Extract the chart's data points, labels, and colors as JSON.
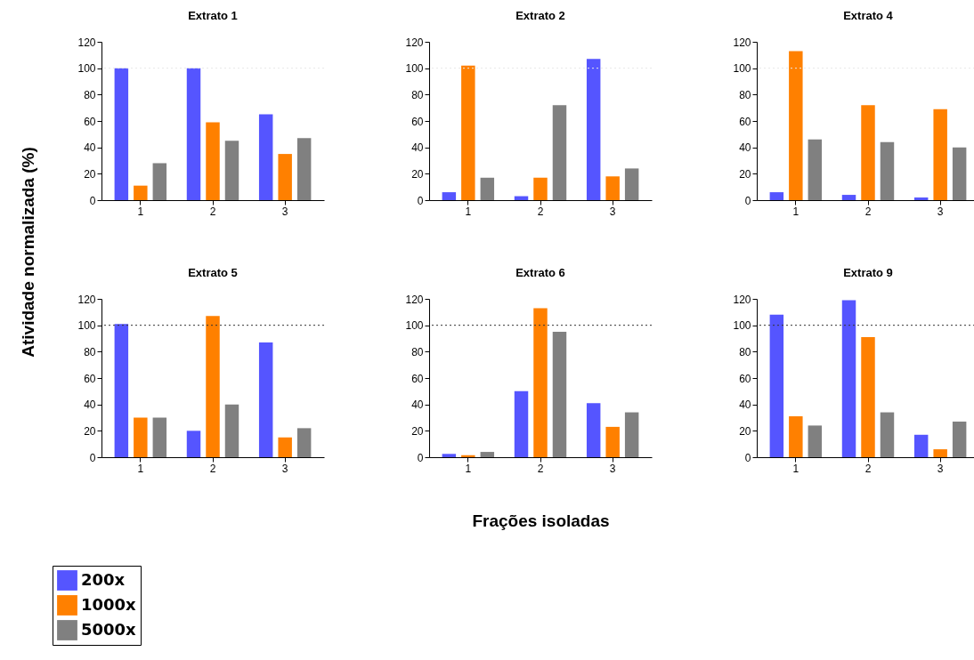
{
  "chart_data": [
    {
      "type": "bar",
      "title": "Extrato 1",
      "ylabel": "Atividade normalizada (%)",
      "categories": [
        "1",
        "2",
        "3"
      ],
      "series": [
        {
          "color": "#5555ff",
          "values": [
            100,
            100,
            65
          ]
        },
        {
          "color": "#ff8000",
          "values": [
            11,
            59,
            35
          ]
        },
        {
          "color": "#808080",
          "values": [
            28,
            45,
            47
          ]
        }
      ],
      "ylim": [
        0,
        120
      ],
      "yticks": [
        0,
        20,
        40,
        60,
        80,
        100,
        120
      ],
      "ref_lines": [
        {
          "axis": "y",
          "value": 100,
          "color": "#e8e8e8",
          "line_style": "dotted"
        }
      ]
    },
    {
      "type": "bar",
      "title": "Extrato 2",
      "categories": [
        "1",
        "2",
        "3"
      ],
      "series": [
        {
          "color": "#5555ff",
          "values": [
            6,
            3,
            107
          ]
        },
        {
          "color": "#ff8000",
          "values": [
            102,
            17,
            18
          ]
        },
        {
          "color": "#808080",
          "values": [
            17,
            72,
            24
          ]
        }
      ],
      "ylim": [
        0,
        120
      ],
      "yticks": [
        0,
        20,
        40,
        60,
        80,
        100,
        120
      ],
      "ref_lines": [
        {
          "axis": "y",
          "value": 100,
          "color": "#e8e8e8",
          "line_style": "dotted"
        }
      ]
    },
    {
      "type": "bar",
      "title": "Extrato 4",
      "categories": [
        "1",
        "2",
        "3"
      ],
      "series": [
        {
          "color": "#5555ff",
          "values": [
            6,
            4,
            2
          ]
        },
        {
          "color": "#ff8000",
          "values": [
            113,
            72,
            69
          ]
        },
        {
          "color": "#808080",
          "values": [
            46,
            44,
            40
          ]
        }
      ],
      "ylim": [
        0,
        120
      ],
      "yticks": [
        0,
        20,
        40,
        60,
        80,
        100,
        120
      ],
      "ref_lines": [
        {
          "axis": "y",
          "value": 100,
          "color": "#e8e8e8",
          "line_style": "dotted"
        }
      ]
    },
    {
      "type": "bar",
      "title": "Extrato 5",
      "categories": [
        "1",
        "2",
        "3"
      ],
      "series": [
        {
          "name": "200x",
          "color": "#5555ff",
          "values": [
            101,
            20,
            87
          ]
        },
        {
          "name": "1000x",
          "color": "#ff8000",
          "values": [
            30,
            107,
            15
          ]
        },
        {
          "name": "5000x",
          "color": "#808080",
          "values": [
            30,
            40,
            22
          ]
        }
      ],
      "ylim": [
        0,
        120
      ],
      "yticks": [
        0,
        20,
        40,
        60,
        80,
        100,
        120
      ],
      "legend": "bottom left",
      "ref_lines": [
        {
          "axis": "y",
          "value": 100,
          "color": "#333333",
          "line_style": "dotted"
        }
      ]
    },
    {
      "type": "bar",
      "title": "Extrato 6",
      "xlabel": "Frações isoladas",
      "categories": [
        "1",
        "2",
        "3"
      ],
      "series": [
        {
          "color": "#5555ff",
          "values": [
            2.5,
            50,
            41
          ]
        },
        {
          "color": "#ff8000",
          "values": [
            1.5,
            113,
            23
          ]
        },
        {
          "color": "#808080",
          "values": [
            4,
            95,
            34
          ]
        }
      ],
      "ylim": [
        0,
        120
      ],
      "yticks": [
        0,
        20,
        40,
        60,
        80,
        100,
        120
      ],
      "ref_lines": [
        {
          "axis": "y",
          "value": 100,
          "color": "#333333",
          "line_style": "dotted"
        }
      ]
    },
    {
      "type": "bar",
      "title": "Extrato 9",
      "categories": [
        "1",
        "2",
        "3"
      ],
      "series": [
        {
          "color": "#5555ff",
          "values": [
            108,
            119,
            17
          ]
        },
        {
          "color": "#ff8000",
          "values": [
            31,
            91,
            6
          ]
        },
        {
          "color": "#808080",
          "values": [
            24,
            34,
            27
          ]
        }
      ],
      "ylim": [
        0,
        120
      ],
      "yticks": [
        0,
        20,
        40,
        60,
        80,
        100,
        120
      ],
      "ref_lines": [
        {
          "axis": "y",
          "value": 100,
          "color": "#333333",
          "line_style": "dotted"
        }
      ]
    }
  ]
}
